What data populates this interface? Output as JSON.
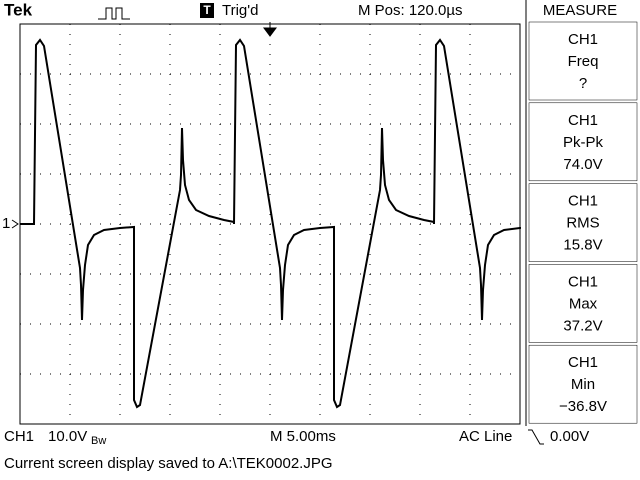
{
  "header": {
    "brand": "Tek",
    "trigger_mark": "T",
    "trigger_status": "Trig'd",
    "position": "M Pos: 120.0µs",
    "panel_title": "MEASURE"
  },
  "channel_marker": "1",
  "measurements": [
    {
      "source": "CH1",
      "name": "Freq",
      "value": "?"
    },
    {
      "source": "CH1",
      "name": "Pk-Pk",
      "value": "74.0V"
    },
    {
      "source": "CH1",
      "name": "RMS",
      "value": "15.8V"
    },
    {
      "source": "CH1",
      "name": "Max",
      "value": "37.2V"
    },
    {
      "source": "CH1",
      "name": "Min",
      "value": "−36.8V"
    }
  ],
  "footer": {
    "channel": "CH1",
    "scale": "10.0V",
    "bandwidth": "Bw",
    "timebase": "M 5.00ms",
    "trigger_source": "AC Line",
    "trigger_level": "0.00V"
  },
  "status": "Current screen display saved to A:\\TEK0002.JPG"
}
